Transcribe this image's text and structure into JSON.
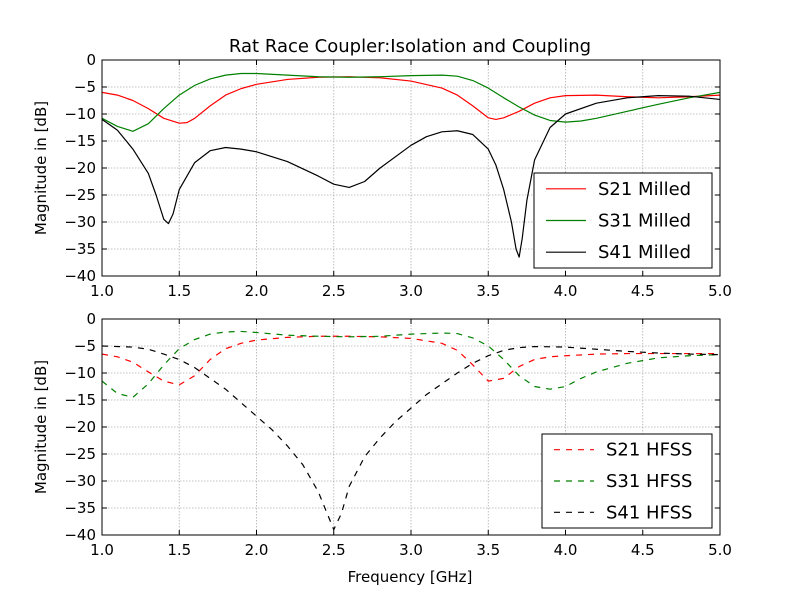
{
  "chart_data": [
    {
      "type": "line",
      "title": "Rat Race Coupler:Isolation and Coupling",
      "xlabel": "",
      "ylabel": "Magnitude in [dB]",
      "xlim": [
        1.0,
        5.0
      ],
      "ylim": [
        -40,
        0
      ],
      "x_ticks": [
        "1.0",
        "1.5",
        "2.0",
        "2.5",
        "3.0",
        "3.5",
        "4.0",
        "4.5",
        "5.0"
      ],
      "y_ticks": [
        "0",
        "−5",
        "−10",
        "−15",
        "−20",
        "−25",
        "−30",
        "−35",
        "−40"
      ],
      "grid": true,
      "legend_position": "lower-right",
      "series": [
        {
          "name": "S21 Milled",
          "color": "#ff0000",
          "style": "solid",
          "x": [
            1.0,
            1.1,
            1.2,
            1.3,
            1.4,
            1.5,
            1.55,
            1.6,
            1.7,
            1.8,
            1.9,
            2.0,
            2.2,
            2.4,
            2.6,
            2.8,
            3.0,
            3.2,
            3.3,
            3.4,
            3.5,
            3.55,
            3.6,
            3.7,
            3.8,
            3.9,
            4.0,
            4.2,
            4.4,
            4.6,
            4.8,
            5.0
          ],
          "y": [
            -6.0,
            -6.5,
            -7.5,
            -9.0,
            -10.8,
            -11.7,
            -11.6,
            -10.8,
            -8.5,
            -6.5,
            -5.3,
            -4.5,
            -3.6,
            -3.2,
            -3.1,
            -3.3,
            -3.9,
            -5.2,
            -6.5,
            -8.5,
            -10.7,
            -11.0,
            -10.7,
            -9.5,
            -8.0,
            -7.0,
            -6.6,
            -6.5,
            -6.8,
            -7.0,
            -6.8,
            -6.5
          ]
        },
        {
          "name": "S31 Milled",
          "color": "#008000",
          "style": "solid",
          "x": [
            1.0,
            1.1,
            1.2,
            1.3,
            1.4,
            1.5,
            1.6,
            1.7,
            1.8,
            1.9,
            2.0,
            2.2,
            2.4,
            2.6,
            2.8,
            3.0,
            3.2,
            3.3,
            3.4,
            3.5,
            3.6,
            3.7,
            3.8,
            3.9,
            4.0,
            4.1,
            4.2,
            4.4,
            4.6,
            4.8,
            5.0
          ],
          "y": [
            -10.8,
            -12.3,
            -13.2,
            -11.8,
            -9.0,
            -6.5,
            -4.7,
            -3.5,
            -2.8,
            -2.5,
            -2.5,
            -2.8,
            -3.1,
            -3.2,
            -3.1,
            -2.9,
            -2.8,
            -3.0,
            -3.8,
            -5.2,
            -7.0,
            -8.7,
            -10.2,
            -11.2,
            -11.5,
            -11.3,
            -10.8,
            -9.5,
            -8.2,
            -7.0,
            -6.0
          ]
        },
        {
          "name": "S41 Milled",
          "color": "#000000",
          "style": "solid",
          "x": [
            1.0,
            1.1,
            1.2,
            1.3,
            1.35,
            1.4,
            1.43,
            1.46,
            1.5,
            1.6,
            1.7,
            1.8,
            1.9,
            2.0,
            2.2,
            2.4,
            2.5,
            2.6,
            2.7,
            2.8,
            3.0,
            3.1,
            3.2,
            3.3,
            3.4,
            3.5,
            3.55,
            3.6,
            3.65,
            3.68,
            3.7,
            3.72,
            3.75,
            3.8,
            3.9,
            4.0,
            4.2,
            4.4,
            4.6,
            4.8,
            5.0
          ],
          "y": [
            -11.0,
            -13.0,
            -16.5,
            -21.0,
            -25.0,
            -29.5,
            -30.3,
            -28.5,
            -24.0,
            -19.0,
            -16.8,
            -16.2,
            -16.5,
            -17.0,
            -18.8,
            -21.5,
            -23.0,
            -23.6,
            -22.5,
            -20.0,
            -15.8,
            -14.2,
            -13.3,
            -13.1,
            -13.8,
            -16.5,
            -19.5,
            -24.0,
            -30.0,
            -35.0,
            -36.5,
            -33.0,
            -26.0,
            -18.5,
            -12.5,
            -10.0,
            -8.0,
            -7.0,
            -6.6,
            -6.7,
            -7.3
          ]
        }
      ]
    },
    {
      "type": "line",
      "title": "",
      "xlabel": "Frequency [GHz]",
      "ylabel": "Magnitude in [dB]",
      "xlim": [
        1.0,
        5.0
      ],
      "ylim": [
        -40,
        0
      ],
      "x_ticks": [
        "1.0",
        "1.5",
        "2.0",
        "2.5",
        "3.0",
        "3.5",
        "4.0",
        "4.5",
        "5.0"
      ],
      "y_ticks": [
        "0",
        "−5",
        "−10",
        "−15",
        "−20",
        "−25",
        "−30",
        "−35",
        "−40"
      ],
      "grid": true,
      "legend_position": "lower-right",
      "series": [
        {
          "name": "S21 HFSS",
          "color": "#ff0000",
          "style": "dashed",
          "x": [
            1.0,
            1.1,
            1.2,
            1.3,
            1.4,
            1.5,
            1.6,
            1.7,
            1.8,
            1.9,
            2.0,
            2.2,
            2.4,
            2.6,
            2.8,
            3.0,
            3.2,
            3.3,
            3.4,
            3.5,
            3.6,
            3.7,
            3.8,
            3.9,
            4.0,
            4.2,
            4.4,
            4.6,
            4.8,
            5.0
          ],
          "y": [
            -6.5,
            -7.0,
            -8.0,
            -9.8,
            -11.5,
            -12.2,
            -10.5,
            -7.5,
            -5.5,
            -4.5,
            -3.9,
            -3.4,
            -3.2,
            -3.2,
            -3.3,
            -3.6,
            -4.5,
            -5.8,
            -8.5,
            -11.5,
            -11.0,
            -8.8,
            -7.5,
            -7.0,
            -6.8,
            -6.5,
            -6.4,
            -6.4,
            -6.4,
            -6.4
          ]
        },
        {
          "name": "S31 HFSS",
          "color": "#008000",
          "style": "dashed",
          "x": [
            1.0,
            1.1,
            1.2,
            1.3,
            1.4,
            1.5,
            1.6,
            1.7,
            1.8,
            1.9,
            2.0,
            2.2,
            2.4,
            2.6,
            2.8,
            3.0,
            3.2,
            3.3,
            3.4,
            3.5,
            3.6,
            3.7,
            3.8,
            3.9,
            4.0,
            4.1,
            4.2,
            4.4,
            4.6,
            4.8,
            5.0
          ],
          "y": [
            -11.5,
            -13.8,
            -14.5,
            -12.0,
            -8.5,
            -5.5,
            -3.8,
            -2.8,
            -2.4,
            -2.3,
            -2.5,
            -3.0,
            -3.2,
            -3.3,
            -3.2,
            -2.8,
            -2.6,
            -2.7,
            -3.5,
            -5.0,
            -7.5,
            -10.5,
            -12.5,
            -13.0,
            -12.5,
            -11.0,
            -9.8,
            -8.2,
            -7.2,
            -6.8,
            -6.6
          ]
        },
        {
          "name": "S41 HFSS",
          "color": "#000000",
          "style": "dashed",
          "x": [
            1.0,
            1.2,
            1.3,
            1.4,
            1.5,
            1.6,
            1.7,
            1.8,
            1.9,
            2.0,
            2.1,
            2.2,
            2.3,
            2.4,
            2.45,
            2.5,
            2.55,
            2.6,
            2.7,
            2.8,
            2.9,
            3.0,
            3.1,
            3.2,
            3.3,
            3.4,
            3.5,
            3.6,
            3.7,
            3.8,
            4.0,
            4.2,
            4.4,
            4.6,
            4.8,
            5.0
          ],
          "y": [
            -5.0,
            -5.2,
            -5.6,
            -6.5,
            -7.5,
            -9.0,
            -11.0,
            -13.0,
            -15.5,
            -18.0,
            -20.5,
            -23.5,
            -27.0,
            -32.0,
            -35.5,
            -39.0,
            -36.0,
            -31.0,
            -25.5,
            -22.0,
            -19.0,
            -16.5,
            -14.0,
            -12.0,
            -10.0,
            -8.2,
            -6.8,
            -5.8,
            -5.3,
            -5.1,
            -5.2,
            -5.6,
            -6.0,
            -6.3,
            -6.5,
            -6.6
          ]
        }
      ]
    }
  ]
}
